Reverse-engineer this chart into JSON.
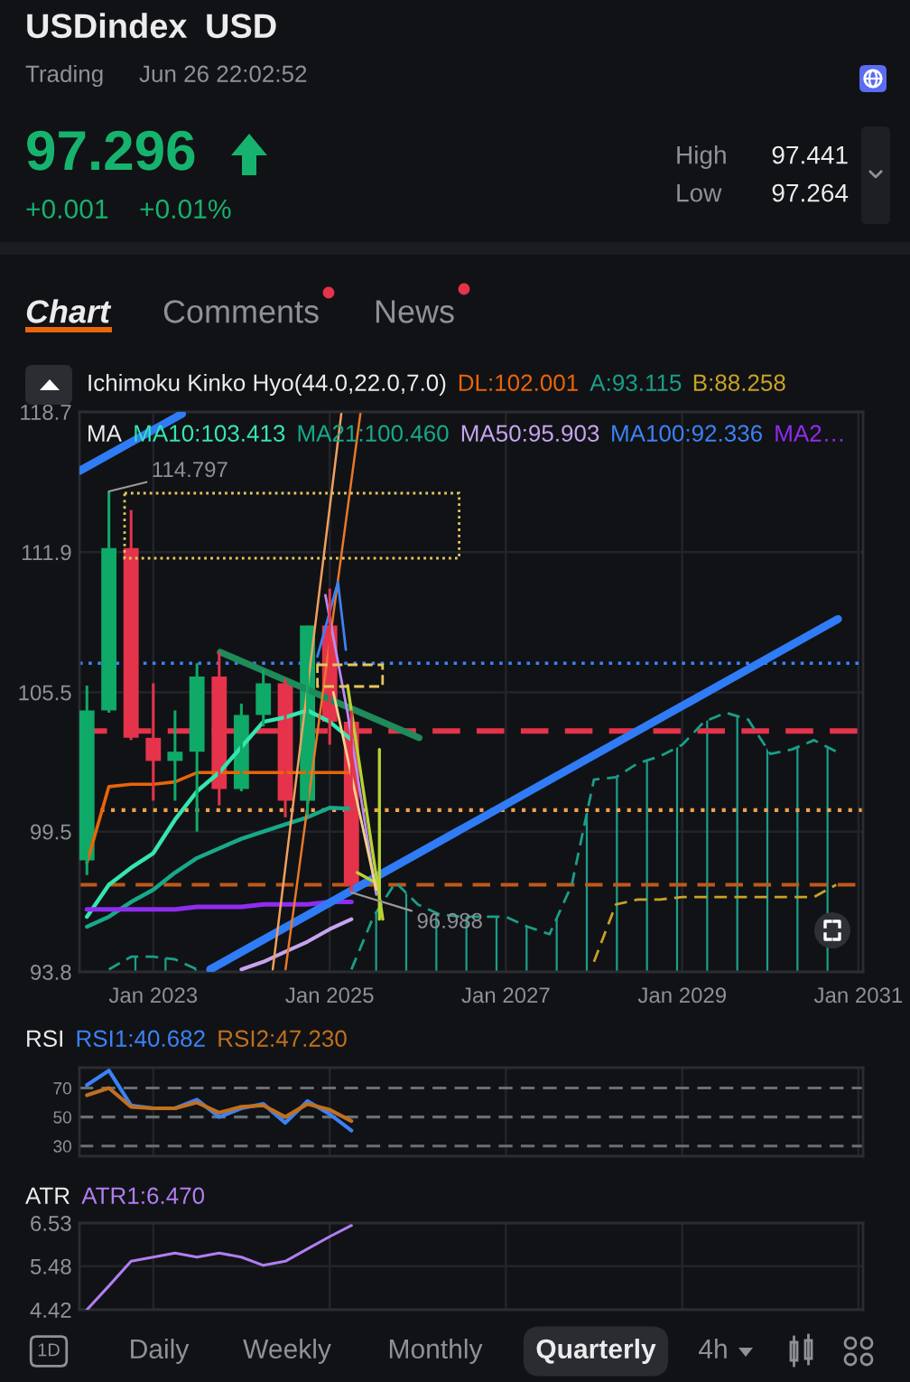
{
  "chart_data": [
    {
      "type": "candlestick",
      "title": "USDindex",
      "subtitle": "USD",
      "x": [
        "2022-04",
        "2022-07",
        "2022-10",
        "2023-01",
        "2023-04",
        "2023-07",
        "2023-10",
        "2024-01",
        "2024-04",
        "2024-07",
        "2024-10",
        "2025-01",
        "2025-04"
      ],
      "ohlc": [
        [
          98.3,
          105.8,
          97.7,
          104.7
        ],
        [
          104.7,
          114.797,
          104.6,
          112.1
        ],
        [
          112.1,
          113.9,
          103.4,
          103.5
        ],
        [
          103.5,
          105.9,
          100.8,
          102.5
        ],
        [
          102.5,
          104.7,
          100.8,
          102.9
        ],
        [
          102.9,
          106.8,
          99.5,
          106.2
        ],
        [
          106.2,
          107.3,
          100.6,
          101.3
        ],
        [
          101.3,
          105.0,
          101.2,
          104.5
        ],
        [
          104.5,
          106.5,
          104.0,
          105.9
        ],
        [
          105.9,
          106.1,
          100.1,
          100.8
        ],
        [
          100.8,
          108.5,
          100.2,
          108.5
        ],
        [
          108.5,
          110.2,
          103.2,
          104.2
        ],
        [
          104.2,
          104.7,
          96.988,
          97.296
        ]
      ],
      "colors": [
        "#0fa968",
        "#0fa968",
        "#e5334b",
        "#e5334b",
        "#0fa968",
        "#0fa968",
        "#e5334b",
        "#0fa968",
        "#0fa968",
        "#e5334b",
        "#0fa968",
        "#e5334b",
        "#e5334b"
      ],
      "series": [
        {
          "type": "line",
          "name": "DL:102.001",
          "color": "#e8650a",
          "values": [
            98.2,
            101.4,
            101.5,
            101.5,
            101.6,
            102.0,
            102.0,
            102.0,
            102.0,
            102.0,
            102.0,
            102.0,
            102.001
          ]
        },
        {
          "type": "area",
          "name": "A:93.115",
          "color": "#1a9e8a",
          "line_style": "dashed",
          "x": [
            "2022-07",
            "2022-10",
            "2023-01",
            "2023-04",
            "2023-07",
            "2023-10",
            "2024-01",
            "2024-04",
            "2024-07",
            "2024-10",
            "2025-01",
            "2025-04",
            "2025-07",
            "2025-10",
            "2026-01",
            "2026-04",
            "2026-07",
            "2026-10",
            "2027-01",
            "2027-04",
            "2027-07",
            "2027-10",
            "2028-01",
            "2028-04",
            "2028-07",
            "2028-10",
            "2029-01",
            "2029-04",
            "2029-07",
            "2029-10",
            "2030-01",
            "2030-04",
            "2030-07",
            "2030-10"
          ],
          "values": [
            93.9,
            94.4,
            94.4,
            94.3,
            93.9,
            null,
            null,
            null,
            null,
            null,
            null,
            93.9,
            96.0,
            97.4,
            96.5,
            96.1,
            96.0,
            96.0,
            96.0,
            95.6,
            95.3,
            97.3,
            101.7,
            101.8,
            102.4,
            102.7,
            103.2,
            104.2,
            104.6,
            104.3,
            102.8,
            103.0,
            103.4,
            102.9
          ]
        },
        {
          "type": "line",
          "name": "B:88.258",
          "color": "#c9a227",
          "line_style": "dashed",
          "x": [
            "2028-01",
            "2028-04",
            "2028-07",
            "2028-10",
            "2029-01",
            "2029-04",
            "2029-07",
            "2029-10",
            "2030-01",
            "2030-04",
            "2030-07",
            "2030-10"
          ],
          "values": [
            94.2,
            96.5,
            96.7,
            96.7,
            96.8,
            96.8,
            96.8,
            96.8,
            96.8,
            96.8,
            96.8,
            97.3
          ]
        },
        {
          "type": "line",
          "name": "MA10:103.413",
          "color": "#35e6ae",
          "values": [
            96.0,
            97.3,
            98.0,
            98.6,
            100.0,
            101.2,
            102.0,
            103.1,
            104.2,
            104.4,
            104.7,
            104.2,
            103.413
          ]
        },
        {
          "type": "line",
          "name": "MA21:100.460",
          "color": "#17a98a",
          "values": [
            95.6,
            96.0,
            96.6,
            97.1,
            97.8,
            98.4,
            98.8,
            99.2,
            99.5,
            99.8,
            100.1,
            100.5,
            100.46
          ]
        },
        {
          "type": "line",
          "name": "MA50:95.903",
          "color": "#c6a4f0",
          "values": [
            null,
            null,
            null,
            null,
            null,
            null,
            null,
            93.9,
            94.2,
            94.6,
            95.0,
            95.5,
            95.903
          ]
        },
        {
          "type": "line",
          "name": "MA100:92.336",
          "color": "#3b82f6",
          "values": [
            null,
            null,
            null,
            null,
            null,
            null,
            null,
            null,
            null,
            null,
            null,
            null,
            null
          ]
        },
        {
          "type": "line",
          "name": "MA2…",
          "color": "#8f2cf0",
          "values": [
            96.3,
            96.3,
            96.3,
            96.3,
            96.3,
            96.4,
            96.4,
            96.4,
            96.5,
            96.5,
            96.5,
            96.6,
            96.6
          ]
        },
        {
          "type": "line",
          "color": "#2f7cf6",
          "x": [
            "2022-03-03",
            "2023-04-30"
          ],
          "values": [
            115.8,
            118.6
          ]
        },
        {
          "type": "line",
          "color": "#2f7cf6",
          "x": [
            "2023-08-25",
            "2030-10-08"
          ],
          "values": [
            93.9,
            108.8
          ]
        },
        {
          "type": "line",
          "color": "#1f8a5a",
          "x": [
            "2023-10-05",
            "2026-01-07"
          ],
          "values": [
            107.3,
            103.5
          ]
        },
        {
          "type": "line",
          "color": "#f0a060",
          "x": [
            "2024-05-10",
            "2025-02-18"
          ],
          "values": [
            93.9,
            118.6
          ]
        },
        {
          "type": "line",
          "color": "#e8782a",
          "x": [
            "2024-07-02",
            "2025-05-08"
          ],
          "values": [
            93.9,
            118.6
          ]
        },
        {
          "type": "line",
          "color": "#3b82f6",
          "x": [
            "2024-11-11",
            "2025-02-04",
            "2025-03-09"
          ],
          "values": [
            107.1,
            110.5,
            107.4
          ]
        },
        {
          "type": "line",
          "color": "#b98cf0",
          "x": [
            "2024-12-14",
            "2025-03-16",
            "2025-07-13"
          ],
          "values": [
            109.9,
            104.6,
            96.9
          ]
        },
        {
          "type": "line",
          "color": "#b8d432",
          "x": [
            "2025-03-16",
            "2025-08-09"
          ],
          "values": [
            105.8,
            95.9
          ]
        },
        {
          "type": "line",
          "color": "#b8d432",
          "x": [
            "2025-04-25",
            "2025-07-26"
          ],
          "values": [
            97.8,
            97.3
          ]
        },
        {
          "type": "line",
          "color": "#b8d432",
          "x": [
            "2025-07-26",
            "2025-07-26"
          ],
          "values": [
            103.0,
            95.9
          ]
        },
        {
          "type": "line",
          "color": "#f3d28a",
          "x": [
            "2025-01-16",
            "2025-07-13"
          ],
          "values": [
            105.5,
            97.1
          ]
        }
      ],
      "xlim": [
        "2022-03-01",
        "2031-01-20"
      ],
      "xticks": [
        {
          "value": "2023-01",
          "label": "Jan 2023"
        },
        {
          "value": "2025-01",
          "label": "Jan 2025"
        },
        {
          "value": "2027-01",
          "label": "Jan 2027"
        },
        {
          "value": "2029-01",
          "label": "Jan 2029"
        },
        {
          "value": "2031-01",
          "label": "Jan 2031"
        }
      ],
      "ylim": [
        93.8,
        118.7
      ],
      "yticks": [
        118.7,
        111.9,
        105.5,
        99.5,
        93.8
      ],
      "log": true,
      "grid": true,
      "legend": "top",
      "ref_lines": [
        {
          "axis": "y",
          "value": 106.8,
          "color": "#3b82f6",
          "line_style": "dotted"
        },
        {
          "axis": "y",
          "value": 103.8,
          "color": "#e5334b",
          "line_style": "dashed"
        },
        {
          "axis": "y",
          "value": 100.4,
          "color": "#f0a050",
          "line_style": "dotted"
        },
        {
          "axis": "y",
          "value": 97.3,
          "color": "#c0581a",
          "line_style": "dashed"
        }
      ],
      "annotations": [
        "Trading",
        "Jun 26 22:02:52",
        "97.296",
        "+0.001",
        "+0.01%",
        "High",
        "97.441",
        "Low",
        "97.264",
        "Chart",
        "Comments",
        "News",
        "Ichimoku Kinko Hyo(44.0,22.0,7.0)",
        "MA",
        {
          "text": "114.797",
          "x": "2022-07",
          "y": 114.797
        },
        {
          "text": "96.988",
          "x": "2025-04",
          "y": 96.988
        }
      ]
    },
    {
      "type": "line",
      "title": "RSI",
      "x": [
        "2022-04",
        "2022-07",
        "2022-10",
        "2023-01",
        "2023-04",
        "2023-07",
        "2023-10",
        "2024-01",
        "2024-04",
        "2024-07",
        "2024-10",
        "2025-01",
        "2025-04"
      ],
      "series": [
        {
          "name": "RSI1:40.682",
          "color": "#3b82f6",
          "values": [
            72,
            82,
            58,
            56,
            56,
            62,
            50,
            56,
            59,
            46,
            61,
            52,
            40.682
          ]
        },
        {
          "name": "RSI2:47.230",
          "color": "#c0701f",
          "values": [
            65,
            70,
            57,
            56,
            56,
            60,
            53,
            57,
            58,
            50,
            59,
            55,
            47.23
          ]
        }
      ],
      "xlim": [
        "2022-03-01",
        "2031-01-20"
      ],
      "xticks": [
        {
          "value": "2023-01",
          "label": null
        },
        {
          "value": "2025-01",
          "label": null
        },
        {
          "value": "2027-01",
          "label": null
        },
        {
          "value": "2029-01",
          "label": null
        },
        {
          "value": "2031-01",
          "label": null
        }
      ],
      "ylim": [
        23,
        84
      ],
      "yticks": [
        70,
        50,
        30
      ],
      "tick_labels": "y",
      "grid": "x",
      "legend": "top left",
      "ref_lines": [
        {
          "axis": "y",
          "value": 70,
          "color": "#6b6e74",
          "line_style": "dashed"
        },
        {
          "axis": "y",
          "value": 50,
          "color": "#6b6e74",
          "line_style": "dashed"
        },
        {
          "axis": "y",
          "value": 30,
          "color": "#6b6e74",
          "line_style": "dashed"
        }
      ]
    },
    {
      "type": "line",
      "title": "ATR",
      "x": [
        "2022-04",
        "2022-07",
        "2022-10",
        "2023-01",
        "2023-04",
        "2023-07",
        "2023-10",
        "2024-01",
        "2024-04",
        "2024-07",
        "2024-10",
        "2025-01",
        "2025-04"
      ],
      "series": [
        {
          "name": "ATR1:6.470",
          "color": "#b07ef0",
          "values": [
            4.42,
            5.0,
            5.6,
            5.7,
            5.8,
            5.7,
            5.8,
            5.7,
            5.5,
            5.6,
            5.9,
            6.2,
            6.47
          ]
        }
      ],
      "xlim": [
        "2022-03-01",
        "2031-01-20"
      ],
      "xticks": [
        {
          "value": "2023-01",
          "label": null
        },
        {
          "value": "2025-01",
          "label": null
        },
        {
          "value": "2027-01",
          "label": null
        },
        {
          "value": "2029-01",
          "label": null
        },
        {
          "value": "2031-01",
          "label": null
        }
      ],
      "ylim": [
        4.42,
        6.53
      ],
      "yticks": [
        6.53,
        5.48,
        4.42
      ],
      "tick_labels": "y",
      "grid": true,
      "legend": "top left",
      "annotations": [
        "1D",
        "Daily",
        "Weekly",
        "Monthly",
        "Quarterly",
        "4h"
      ]
    }
  ]
}
